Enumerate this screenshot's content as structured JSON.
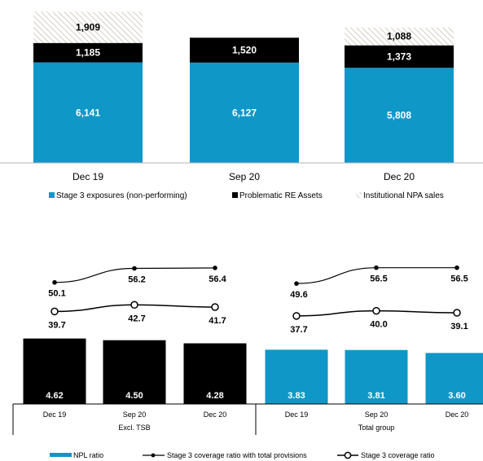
{
  "colors": {
    "stage3": "#0f97c8",
    "re_assets": "#000000",
    "npa_hatch": "#c9bfb4",
    "line": "#000000"
  },
  "chart_data": [
    {
      "type": "bar",
      "stacked": true,
      "categories": [
        "Dec 19",
        "Sep 20",
        "Dec 20"
      ],
      "series": [
        {
          "name": "Stage 3 exposures (non-performing)",
          "values": [
            6141,
            6127,
            5808
          ]
        },
        {
          "name": "Problematic RE Assets",
          "values": [
            1185,
            1520,
            1373
          ]
        },
        {
          "name": "Institutional NPA sales",
          "values": [
            1909,
            null,
            1088
          ]
        }
      ],
      "value_labels": {
        "stage3": [
          "6,141",
          "6,127",
          "5,808"
        ],
        "re_assets": [
          "1,185",
          "1,520",
          "1,373"
        ],
        "npa": [
          "1,909",
          "",
          "1,088"
        ]
      },
      "legend_position": "bottom",
      "grid": false
    },
    {
      "type": "bar",
      "groups": [
        "Excl. TSB",
        "Total group"
      ],
      "categories": [
        "Dec 19",
        "Sep 20",
        "Dec 20",
        "Dec 19",
        "Sep 20",
        "Dec 20"
      ],
      "series": [
        {
          "name": "NPL ratio",
          "values": [
            4.62,
            4.5,
            4.28,
            3.83,
            3.81,
            3.6
          ]
        },
        {
          "name": "Stage 3 coverage ratio with total provisions",
          "values": [
            50.1,
            56.2,
            56.4,
            49.6,
            56.5,
            56.5
          ]
        },
        {
          "name": "Stage 3 coverage ratio",
          "values": [
            39.7,
            42.7,
            41.7,
            37.7,
            40.0,
            39.1
          ]
        }
      ],
      "value_labels": {
        "npl": [
          "4.62",
          "4.50",
          "4.28",
          "3.83",
          "3.81",
          "3.60"
        ],
        "coverage_total": [
          "50.1",
          "56.2",
          "56.4",
          "49.6",
          "56.5",
          "56.5"
        ],
        "coverage": [
          "39.7",
          "42.7",
          "41.7",
          "37.7",
          "40.0",
          "39.1"
        ]
      },
      "legend_position": "bottom",
      "grid": false
    }
  ]
}
